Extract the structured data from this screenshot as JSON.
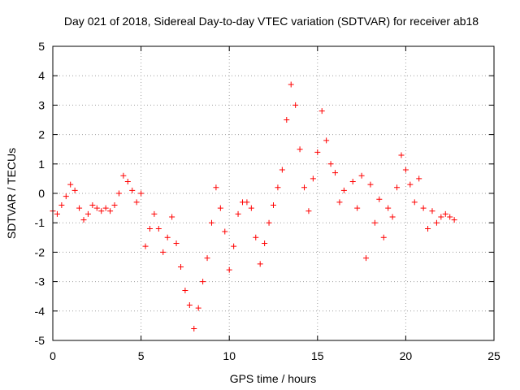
{
  "chart_data": {
    "type": "scatter",
    "title": "Day 021 of 2018, Sidereal Day-to-day VTEC variation (SDTVAR) for receiver ab18",
    "xlabel": "GPS time / hours",
    "ylabel": "SDTVAR / TECUs",
    "xlim": [
      0,
      25
    ],
    "ylim": [
      -5,
      5
    ],
    "xticks": [
      0,
      5,
      10,
      15,
      20,
      25
    ],
    "yticks": [
      -5,
      -4,
      -3,
      -2,
      -1,
      0,
      1,
      2,
      3,
      4,
      5
    ],
    "grid": true,
    "marker": "+",
    "series": [
      {
        "name": "SDTVAR",
        "color": "#ff0000",
        "x": [
          0.0,
          0.25,
          0.5,
          0.75,
          1.0,
          1.25,
          1.5,
          1.75,
          2.0,
          2.25,
          2.5,
          2.75,
          3.0,
          3.25,
          3.5,
          3.75,
          4.0,
          4.25,
          4.5,
          4.75,
          5.0,
          5.25,
          5.5,
          5.75,
          6.0,
          6.25,
          6.5,
          6.75,
          7.0,
          7.25,
          7.5,
          7.75,
          8.0,
          8.25,
          8.5,
          8.75,
          9.0,
          9.25,
          9.5,
          9.75,
          10.0,
          10.25,
          10.5,
          10.75,
          11.0,
          11.25,
          11.5,
          11.75,
          12.0,
          12.25,
          12.5,
          12.75,
          13.0,
          13.25,
          13.5,
          13.75,
          14.0,
          14.25,
          14.5,
          14.75,
          15.0,
          15.25,
          15.5,
          15.75,
          16.0,
          16.25,
          16.5,
          17.0,
          17.25,
          17.5,
          17.75,
          18.0,
          18.25,
          18.5,
          18.75,
          19.0,
          19.25,
          19.5,
          19.75,
          20.0,
          20.25,
          20.5,
          20.75,
          21.0,
          21.25,
          21.5,
          21.75,
          22.0,
          22.25,
          22.5,
          22.75
        ],
        "y": [
          -0.6,
          -0.7,
          -0.4,
          -0.1,
          0.3,
          0.1,
          -0.5,
          -0.9,
          -0.7,
          -0.4,
          -0.5,
          -0.6,
          -0.5,
          -0.6,
          -0.4,
          0.0,
          0.6,
          0.4,
          0.1,
          -0.3,
          0.0,
          -1.8,
          -1.2,
          -0.7,
          -1.2,
          -2.0,
          -1.5,
          -0.8,
          -1.7,
          -2.5,
          -3.3,
          -3.8,
          -4.6,
          -3.9,
          -3.0,
          -2.2,
          -1.0,
          0.2,
          -0.5,
          -1.3,
          -2.6,
          -1.8,
          -0.7,
          -0.3,
          -0.3,
          -0.5,
          -1.5,
          -2.4,
          -1.7,
          -1.0,
          -0.4,
          0.2,
          0.8,
          2.5,
          3.7,
          3.0,
          1.5,
          0.2,
          -0.6,
          0.5,
          1.4,
          2.8,
          1.8,
          1.0,
          0.7,
          -0.3,
          0.1,
          0.4,
          -0.5,
          0.6,
          -2.2,
          0.3,
          -1.0,
          -0.2,
          -1.5,
          -0.5,
          -0.8,
          0.2,
          1.3,
          0.8,
          0.3,
          -0.3,
          0.5,
          -0.5,
          -1.2,
          -0.6,
          -1.0,
          -0.8,
          -0.7,
          -0.8,
          -0.9
        ]
      }
    ]
  }
}
